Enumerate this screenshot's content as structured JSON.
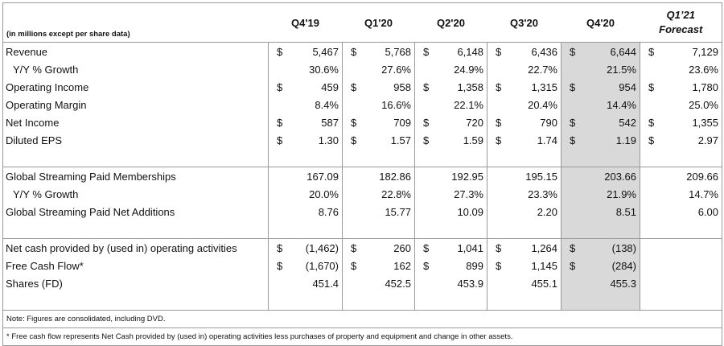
{
  "header": {
    "units_note": "(in millions except per share data)",
    "columns": [
      "Q4'19",
      "Q1'20",
      "Q2'20",
      "Q3'20",
      "Q4'20"
    ],
    "forecast_column": [
      "Q1’21",
      "Forecast"
    ]
  },
  "sections": [
    [
      {
        "label": "Revenue",
        "cells": [
          {
            "sign": "$",
            "text": "5,467"
          },
          {
            "sign": "$",
            "text": "5,768"
          },
          {
            "sign": "$",
            "text": "6,148"
          },
          {
            "sign": "$",
            "text": "6,436"
          },
          {
            "sign": "$",
            "text": "6,644"
          },
          {
            "sign": "$",
            "text": "7,129"
          }
        ]
      },
      {
        "label": "Y/Y % Growth",
        "indent": true,
        "cells": [
          {
            "text": "30.6%"
          },
          {
            "text": "27.6%"
          },
          {
            "text": "24.9%"
          },
          {
            "text": "22.7%"
          },
          {
            "text": "21.5%"
          },
          {
            "text": "23.6%"
          }
        ]
      },
      {
        "label": "Operating Income",
        "cells": [
          {
            "sign": "$",
            "text": "459"
          },
          {
            "sign": "$",
            "text": "958"
          },
          {
            "sign": "$",
            "text": "1,358"
          },
          {
            "sign": "$",
            "text": "1,315"
          },
          {
            "sign": "$",
            "text": "954"
          },
          {
            "sign": "$",
            "text": "1,780"
          }
        ]
      },
      {
        "label": "Operating Margin",
        "cells": [
          {
            "text": "8.4%"
          },
          {
            "text": "16.6%"
          },
          {
            "text": "22.1%"
          },
          {
            "text": "20.4%"
          },
          {
            "text": "14.4%"
          },
          {
            "text": "25.0%"
          }
        ]
      },
      {
        "label": "Net Income",
        "cells": [
          {
            "sign": "$",
            "text": "587"
          },
          {
            "sign": "$",
            "text": "709"
          },
          {
            "sign": "$",
            "text": "720"
          },
          {
            "sign": "$",
            "text": "790"
          },
          {
            "sign": "$",
            "text": "542"
          },
          {
            "sign": "$",
            "text": "1,355"
          }
        ]
      },
      {
        "label": "Diluted EPS",
        "cells": [
          {
            "sign": "$",
            "text": "1.30"
          },
          {
            "sign": "$",
            "text": "1.57"
          },
          {
            "sign": "$",
            "text": "1.59"
          },
          {
            "sign": "$",
            "text": "1.74"
          },
          {
            "sign": "$",
            "text": "1.19"
          },
          {
            "sign": "$",
            "text": "2.97"
          }
        ]
      }
    ],
    [
      {
        "label": "Global Streaming Paid Memberships",
        "cells": [
          {
            "text": "167.09"
          },
          {
            "text": "182.86"
          },
          {
            "text": "192.95"
          },
          {
            "text": "195.15"
          },
          {
            "text": "203.66"
          },
          {
            "text": "209.66"
          }
        ]
      },
      {
        "label": "Y/Y % Growth",
        "indent": true,
        "cells": [
          {
            "text": "20.0%"
          },
          {
            "text": "22.8%"
          },
          {
            "text": "27.3%"
          },
          {
            "text": "23.3%"
          },
          {
            "text": "21.9%"
          },
          {
            "text": "14.7%"
          }
        ]
      },
      {
        "label": "Global Streaming Paid Net Additions",
        "cells": [
          {
            "text": "8.76"
          },
          {
            "text": "15.77"
          },
          {
            "text": "10.09"
          },
          {
            "text": "2.20"
          },
          {
            "text": "8.51"
          },
          {
            "text": "6.00"
          }
        ]
      }
    ],
    [
      {
        "label": "Net cash provided by (used in) operating activities",
        "cells": [
          {
            "sign": "$",
            "text": "(1,462)"
          },
          {
            "sign": "$",
            "text": "260"
          },
          {
            "sign": "$",
            "text": "1,041"
          },
          {
            "sign": "$",
            "text": "1,264"
          },
          {
            "sign": "$",
            "text": "(138)"
          },
          null
        ]
      },
      {
        "label": "Free Cash Flow*",
        "cells": [
          {
            "sign": "$",
            "text": "(1,670)"
          },
          {
            "sign": "$",
            "text": "162"
          },
          {
            "sign": "$",
            "text": "899"
          },
          {
            "sign": "$",
            "text": "1,145"
          },
          {
            "sign": "$",
            "text": "(284)"
          },
          null
        ]
      },
      {
        "label": "Shares (FD)",
        "cells": [
          {
            "text": "451.4"
          },
          {
            "text": "452.5"
          },
          {
            "text": "453.9"
          },
          {
            "text": "455.1"
          },
          {
            "text": "455.3"
          },
          null
        ]
      }
    ]
  ],
  "notes": [
    "Note: Figures are consolidated, including DVD.",
    "* Free cash flow represents Net Cash provided by (used in) operating activities less purchases of property and equipment and change in other assets."
  ]
}
